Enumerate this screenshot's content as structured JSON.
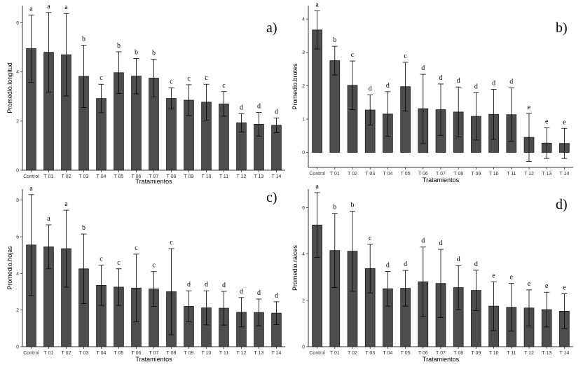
{
  "chart_data": [
    {
      "type": "bar",
      "panel_label": "a)",
      "xlabel": "Tratamientos",
      "ylabel": "Promedio.longitud",
      "ylim": [
        0,
        6.7
      ],
      "yticks": [
        0,
        2,
        4,
        6
      ],
      "categories": [
        "Control",
        "T 01",
        "T 02",
        "T 03",
        "T 04",
        "T 05",
        "T 06",
        "T 07",
        "T 08",
        "T 09",
        "T 10",
        "T 11",
        "T 12",
        "T 13",
        "T 14"
      ],
      "values": [
        4.95,
        4.8,
        4.7,
        3.82,
        2.92,
        3.97,
        3.83,
        3.75,
        2.92,
        2.85,
        2.77,
        2.7,
        1.93,
        1.87,
        1.83
      ],
      "errors": [
        1.37,
        1.62,
        1.68,
        1.27,
        0.58,
        0.85,
        0.72,
        0.77,
        0.43,
        0.63,
        0.73,
        0.5,
        0.37,
        0.48,
        0.3
      ],
      "letters": [
        "a",
        "a",
        "a",
        "b",
        "c",
        "b",
        "b",
        "b",
        "c",
        "c",
        "c",
        "c",
        "d",
        "d",
        "d"
      ]
    },
    {
      "type": "bar",
      "panel_label": "b)",
      "xlabel": "Tratamientos",
      "ylabel": "Promedio.brotes",
      "ylim": [
        -0.45,
        4.4
      ],
      "yticks": [
        0,
        1,
        2,
        3,
        4
      ],
      "categories": [
        "Control",
        "T 01",
        "T 02",
        "T 03",
        "T 04",
        "T 05",
        "T 06",
        "T 07",
        "T 08",
        "T 09",
        "T 10",
        "T 11",
        "T 12",
        "T 13",
        "T 14"
      ],
      "values": [
        3.67,
        2.75,
        2.01,
        1.27,
        1.15,
        1.97,
        1.31,
        1.28,
        1.21,
        1.08,
        1.14,
        1.13,
        0.45,
        0.28,
        0.27
      ],
      "errors": [
        0.57,
        0.43,
        0.73,
        0.45,
        0.67,
        0.73,
        1.03,
        0.77,
        0.75,
        0.71,
        0.75,
        0.8,
        0.72,
        0.46,
        0.45
      ],
      "letters": [
        "a",
        "b",
        "c",
        "d",
        "d",
        "c",
        "d",
        "d",
        "d",
        "d",
        "d",
        "d",
        "e",
        "e",
        "e"
      ]
    },
    {
      "type": "bar",
      "panel_label": "c)",
      "xlabel": "Tratamientos",
      "ylabel": "Promedio.hojas",
      "ylim": [
        0,
        8.6
      ],
      "yticks": [
        0,
        2,
        4,
        6,
        8
      ],
      "categories": [
        "Control",
        "T 01",
        "T 02",
        "T 03",
        "T 04",
        "T 05",
        "T 06",
        "T 07",
        "T 08",
        "T 09",
        "T 10",
        "T 11",
        "T 12",
        "T 13",
        "T 14"
      ],
      "values": [
        5.55,
        5.45,
        5.35,
        4.25,
        3.35,
        3.25,
        3.2,
        3.15,
        3.0,
        2.2,
        2.12,
        2.1,
        1.88,
        1.87,
        1.83
      ],
      "errors": [
        2.75,
        1.2,
        2.1,
        1.9,
        1.1,
        1.0,
        1.85,
        0.95,
        2.35,
        0.85,
        0.93,
        0.92,
        0.8,
        0.73,
        0.62
      ],
      "letters": [
        "a",
        "a",
        "a",
        "b",
        "c",
        "c",
        "c",
        "c",
        "c",
        "d",
        "d",
        "d",
        "d",
        "d",
        "d"
      ]
    },
    {
      "type": "bar",
      "panel_label": "d)",
      "xlabel": "Tratamientos",
      "ylabel": "Promedio.raices",
      "ylim": [
        0,
        6.8
      ],
      "yticks": [
        0,
        2,
        4,
        6
      ],
      "categories": [
        "Control",
        "T 01",
        "T 02",
        "T 03",
        "T 04",
        "T 05",
        "T 06",
        "T 07",
        "T 08",
        "T 09",
        "T 10",
        "T 11",
        "T 12",
        "T 13",
        "T 14"
      ],
      "values": [
        5.25,
        4.15,
        4.12,
        3.37,
        2.5,
        2.52,
        2.8,
        2.73,
        2.55,
        2.43,
        1.75,
        1.7,
        1.67,
        1.6,
        1.53
      ],
      "errors": [
        1.4,
        1.6,
        1.73,
        1.05,
        0.75,
        0.77,
        1.5,
        1.47,
        0.95,
        0.87,
        1.05,
        1.03,
        0.78,
        0.75,
        0.75
      ],
      "letters": [
        "a",
        "b",
        "b",
        "c",
        "d",
        "d",
        "d",
        "d",
        "d",
        "d",
        "e",
        "e",
        "e",
        "e",
        "e"
      ]
    }
  ]
}
